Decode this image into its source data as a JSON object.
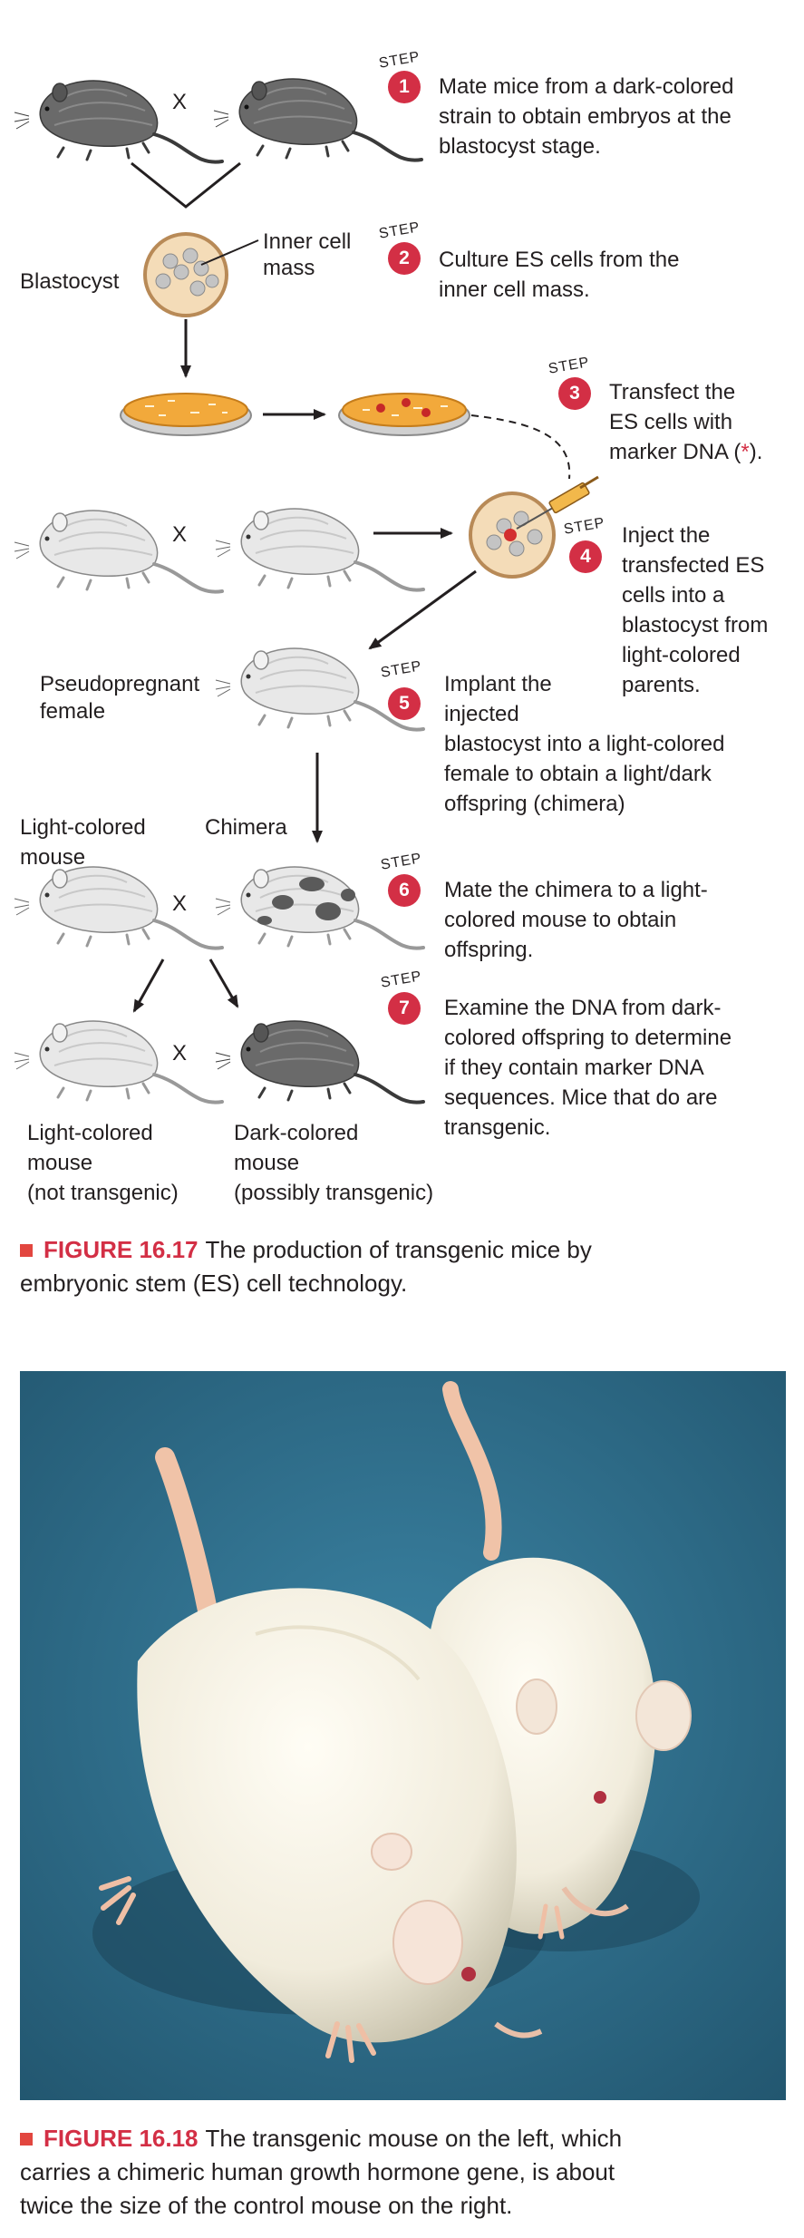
{
  "steps": [
    {
      "number": "1",
      "lines": [
        "Mate mice from a dark-colored",
        "strain to obtain embryos at the",
        "blastocyst stage."
      ]
    },
    {
      "number": "2",
      "lines": [
        "Culture ES cells from the",
        "inner cell mass."
      ]
    },
    {
      "number": "3",
      "lines": [
        "Transfect the",
        "ES cells with",
        "marker DNA (",
        ")."
      ],
      "marker": "*"
    },
    {
      "number": "4",
      "lines": [
        "Inject the",
        "transfected ES",
        "cells into a",
        "blastocyst from",
        "light-colored",
        "parents."
      ]
    },
    {
      "number": "5",
      "lines": [
        "Implant the",
        "injected",
        "blastocyst into a light-colored",
        "female to obtain a light/dark",
        "offspring (chimera)"
      ]
    },
    {
      "number": "6",
      "lines": [
        "Mate the chimera to a light-",
        "colored mouse to obtain",
        "offspring."
      ]
    },
    {
      "number": "7",
      "lines": [
        "Examine the DNA from dark-",
        "colored offspring to determine",
        "if they contain marker DNA",
        "sequences. Mice that do are",
        "transgenic."
      ]
    }
  ],
  "step_word": "STEP",
  "labels": {
    "cross": "X",
    "inner_cell_mass": [
      "Inner cell",
      "mass"
    ],
    "blastocyst": "Blastocyst",
    "pseudopregnant": [
      "Pseudopregnant",
      "female"
    ],
    "light_colored_mouse": [
      "Light-colored",
      "mouse"
    ],
    "chimera": "Chimera",
    "light_offspring": [
      "Light-colored",
      "mouse",
      "(not transgenic)"
    ],
    "dark_offspring": [
      "Dark-colored",
      "mouse",
      "(possibly transgenic)"
    ]
  },
  "figure_16_17": {
    "number": "FIGURE 16.17",
    "lines": [
      "The production of transgenic mice by",
      "embryonic stem (ES) cell technology."
    ]
  },
  "figure_16_18": {
    "number": "FIGURE 16.18",
    "lines": [
      "The transgenic mouse on the left, which",
      "carries a chimeric human growth hormone gene, is about",
      "twice the size of the control mouse on the right."
    ]
  },
  "colors": {
    "step_badge": "#d32f45",
    "caption_number": "#d32f45",
    "dark_mouse": "#6a6a6a",
    "light_mouse": "#e6e6e6",
    "culture_medium": "#f2a93b",
    "photo_background": "#2e6f8c"
  }
}
